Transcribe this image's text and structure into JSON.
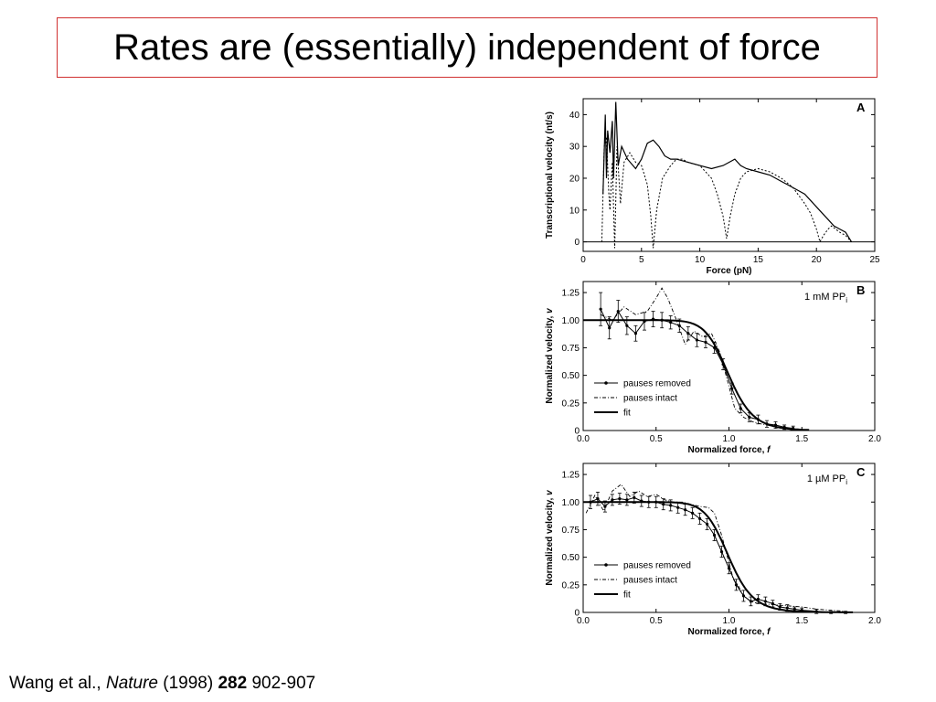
{
  "slide": {
    "title": "Rates are (essentially) independent of force",
    "citation": {
      "authors": "Wang et al.,",
      "journal": "Nature",
      "year": "(1998)",
      "volume": "282",
      "pages": "902-907"
    }
  },
  "chart_data": [
    {
      "panel": "A",
      "type": "line",
      "xlabel": "Force (pN)",
      "ylabel": "Transcriptional velocity (nt/s)",
      "xlim": [
        0,
        25
      ],
      "ylim": [
        -3,
        45
      ],
      "xticks": [
        "0",
        "5",
        "10",
        "15",
        "20",
        "25"
      ],
      "yticks": [
        "0",
        "10",
        "20",
        "30",
        "40"
      ],
      "series": [
        {
          "style": "solid",
          "x": [
            1.7,
            1.9,
            2.0,
            2.1,
            2.3,
            2.5,
            2.6,
            2.8,
            3.0,
            3.3,
            3.8,
            4.5,
            5.0,
            5.5,
            6.0,
            6.5,
            7.0,
            7.5,
            8.0,
            9.0,
            10.0,
            11.0,
            12.0,
            12.5,
            13.0,
            13.5,
            14.0,
            15.0,
            16.0,
            17.0,
            17.5,
            18.0,
            18.5,
            19.0,
            19.5,
            20.0,
            20.5,
            21.0,
            21.5,
            22.0,
            22.5,
            23.0
          ],
          "y": [
            15,
            40,
            20,
            35,
            28,
            38,
            20,
            44,
            24,
            30,
            26,
            23,
            26,
            31,
            32,
            30,
            27,
            26,
            26,
            25,
            24,
            23,
            24,
            25,
            26,
            24,
            23,
            22,
            21,
            19,
            18,
            17,
            16,
            15,
            13,
            11,
            9,
            7,
            5,
            4,
            3,
            0
          ]
        },
        {
          "style": "dotted",
          "x": [
            1.6,
            1.8,
            2.0,
            2.2,
            2.3,
            2.5,
            2.7,
            2.9,
            3.2,
            3.5,
            4.0,
            4.5,
            5.0,
            5.5,
            5.8,
            6.0,
            6.3,
            6.8,
            7.5,
            8.0,
            8.5,
            9.0,
            10.0,
            11.0,
            11.5,
            12.0,
            12.3,
            12.6,
            13.0,
            13.5,
            14.0,
            15.0,
            16.0,
            17.0,
            18.0,
            19.0,
            19.5,
            20.0,
            20.3,
            20.6,
            21.0,
            21.3,
            22.0,
            22.5,
            23.0
          ],
          "y": [
            0,
            30,
            33,
            15,
            10,
            25,
            -2,
            30,
            12,
            25,
            28,
            25,
            24,
            18,
            8,
            -2,
            10,
            20,
            24,
            26,
            26,
            25,
            24,
            20,
            15,
            8,
            1,
            8,
            15,
            20,
            22,
            23,
            22,
            20,
            17,
            12,
            9,
            4,
            0,
            2,
            4,
            5,
            3,
            2,
            0
          ]
        }
      ]
    },
    {
      "panel": "B",
      "condition": "1 mM PP",
      "condition_sub": "i",
      "type": "line",
      "xlabel": "Normalized force, f",
      "ylabel": "Normalized velocity, v",
      "xlim": [
        0.0,
        2.0
      ],
      "ylim": [
        0,
        1.35
      ],
      "xticks": [
        "0.0",
        "0.5",
        "1.0",
        "1.5",
        "2.0"
      ],
      "yticks": [
        "0",
        "0.25",
        "0.50",
        "0.75",
        "1.00",
        "1.25"
      ],
      "legend": [
        "pauses removed",
        "pauses intact",
        "fit"
      ],
      "series": [
        {
          "name": "pauses removed",
          "x": [
            0.12,
            0.18,
            0.24,
            0.3,
            0.36,
            0.42,
            0.48,
            0.54,
            0.6,
            0.66,
            0.72,
            0.78,
            0.84,
            0.9,
            0.96,
            1.02,
            1.08,
            1.14,
            1.2,
            1.26,
            1.32,
            1.38,
            1.44
          ],
          "y": [
            1.1,
            0.93,
            1.08,
            0.95,
            0.88,
            0.99,
            1.01,
            1.0,
            0.98,
            0.95,
            0.88,
            0.82,
            0.8,
            0.75,
            0.6,
            0.38,
            0.2,
            0.12,
            0.1,
            0.06,
            0.05,
            0.03,
            0.02
          ],
          "err": [
            0.15,
            0.1,
            0.1,
            0.08,
            0.07,
            0.08,
            0.07,
            0.07,
            0.06,
            0.06,
            0.06,
            0.06,
            0.05,
            0.05,
            0.05,
            0.05,
            0.04,
            0.04,
            0.04,
            0.03,
            0.03,
            0.02,
            0.02
          ]
        },
        {
          "name": "pauses intact",
          "x": [
            0.12,
            0.2,
            0.28,
            0.36,
            0.44,
            0.5,
            0.54,
            0.58,
            0.64,
            0.7,
            0.76,
            0.82,
            0.88,
            0.94,
            1.0,
            1.04,
            1.1,
            1.16,
            1.22,
            1.3,
            1.38,
            1.45
          ],
          "y": [
            1.05,
            1.0,
            1.12,
            1.05,
            1.08,
            1.2,
            1.29,
            1.2,
            1.0,
            0.78,
            0.9,
            0.85,
            0.88,
            0.7,
            0.4,
            0.2,
            0.12,
            0.08,
            0.06,
            0.04,
            0.02,
            0.0
          ]
        },
        {
          "name": "fit",
          "fn": "hill",
          "f0": 1.0,
          "n": 12,
          "x_range": [
            0.0,
            1.55
          ]
        }
      ]
    },
    {
      "panel": "C",
      "condition": "1 µM PP",
      "condition_sub": "i",
      "type": "line",
      "xlabel": "Normalized force, f",
      "ylabel": "Normalized velocity, v",
      "xlim": [
        0.0,
        2.0
      ],
      "ylim": [
        0,
        1.35
      ],
      "xticks": [
        "0.0",
        "0.5",
        "1.0",
        "1.5",
        "2.0"
      ],
      "yticks": [
        "0",
        "0.25",
        "0.50",
        "0.75",
        "1.00",
        "1.25"
      ],
      "legend": [
        "pauses removed",
        "pauses intact",
        "fit"
      ],
      "series": [
        {
          "name": "pauses removed",
          "x": [
            0.05,
            0.1,
            0.15,
            0.2,
            0.25,
            0.3,
            0.35,
            0.4,
            0.45,
            0.5,
            0.55,
            0.6,
            0.65,
            0.7,
            0.75,
            0.8,
            0.85,
            0.9,
            0.95,
            1.0,
            1.05,
            1.1,
            1.15,
            1.2,
            1.25,
            1.3,
            1.35,
            1.4,
            1.45,
            1.5,
            1.6,
            1.7,
            1.8
          ],
          "y": [
            1.0,
            1.03,
            0.96,
            1.02,
            1.03,
            1.02,
            1.04,
            1.01,
            1.0,
            1.0,
            0.98,
            0.97,
            0.95,
            0.93,
            0.9,
            0.85,
            0.8,
            0.7,
            0.55,
            0.4,
            0.25,
            0.15,
            0.1,
            0.12,
            0.1,
            0.08,
            0.05,
            0.04,
            0.03,
            0.02,
            0.01,
            0.0,
            0.0
          ],
          "err": [
            0.06,
            0.06,
            0.05,
            0.05,
            0.05,
            0.05,
            0.05,
            0.05,
            0.05,
            0.05,
            0.05,
            0.05,
            0.05,
            0.05,
            0.05,
            0.05,
            0.05,
            0.05,
            0.05,
            0.05,
            0.05,
            0.05,
            0.04,
            0.04,
            0.04,
            0.03,
            0.03,
            0.03,
            0.02,
            0.02,
            0.02,
            0.01,
            0.01
          ]
        },
        {
          "name": "pauses intact",
          "x": [
            0.02,
            0.08,
            0.14,
            0.2,
            0.26,
            0.32,
            0.38,
            0.44,
            0.5,
            0.56,
            0.62,
            0.68,
            0.74,
            0.8,
            0.86,
            0.9,
            0.95,
            1.0,
            1.03,
            1.06,
            1.1,
            1.15,
            1.2,
            1.3,
            1.4,
            1.5,
            1.6,
            1.7,
            1.8
          ],
          "y": [
            0.9,
            1.06,
            0.92,
            1.1,
            1.16,
            1.05,
            1.1,
            1.05,
            1.07,
            1.02,
            1.0,
            1.0,
            0.98,
            0.96,
            0.95,
            0.9,
            0.7,
            0.45,
            0.3,
            0.25,
            0.15,
            0.1,
            0.08,
            0.07,
            0.06,
            0.05,
            0.03,
            0.02,
            0.01
          ]
        },
        {
          "name": "fit",
          "fn": "hill",
          "f0": 1.0,
          "n": 12,
          "x_range": [
            0.0,
            1.85
          ]
        }
      ]
    }
  ]
}
